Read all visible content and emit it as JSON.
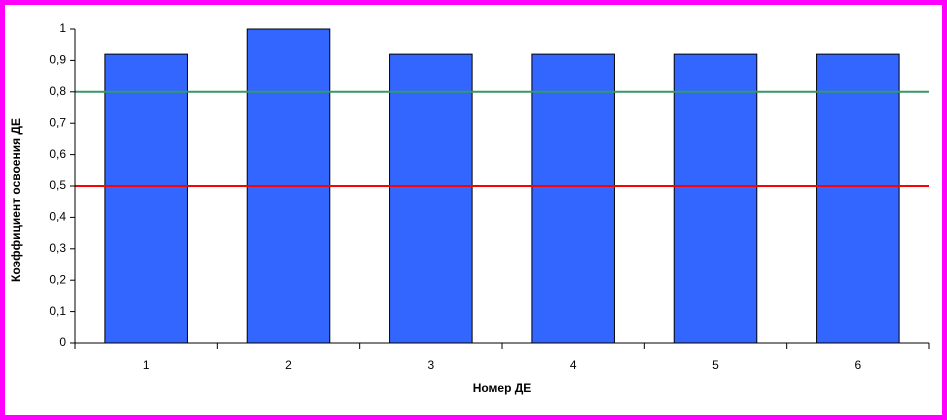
{
  "chart_data": {
    "type": "bar",
    "x_label": "Номер ДЕ",
    "y_label": "Коэффициент освоения ДЕ",
    "categories": [
      "1",
      "2",
      "3",
      "4",
      "5",
      "6"
    ],
    "values": [
      0.92,
      1,
      0.92,
      0.92,
      0.92,
      0.92
    ],
    "color": "#3366ff",
    "ylim": [
      0,
      1
    ],
    "yticks": [
      0,
      {
        "value": 0.1,
        "label": "0,1"
      },
      {
        "value": 0.2,
        "label": "0,2"
      },
      {
        "value": 0.3,
        "label": "0,3"
      },
      {
        "value": 0.4,
        "label": "0,4"
      },
      {
        "value": 0.5,
        "label": "0,5"
      },
      {
        "value": 0.6,
        "label": "0,6"
      },
      {
        "value": 0.7,
        "label": "0,7"
      },
      {
        "value": 0.8,
        "label": "0,8"
      },
      {
        "value": 0.9,
        "label": "0,9"
      },
      1
    ],
    "reference_lines": [
      {
        "value": 0.8,
        "color": "#339966"
      },
      {
        "value": 0.5,
        "color": "#ff0000"
      }
    ]
  }
}
